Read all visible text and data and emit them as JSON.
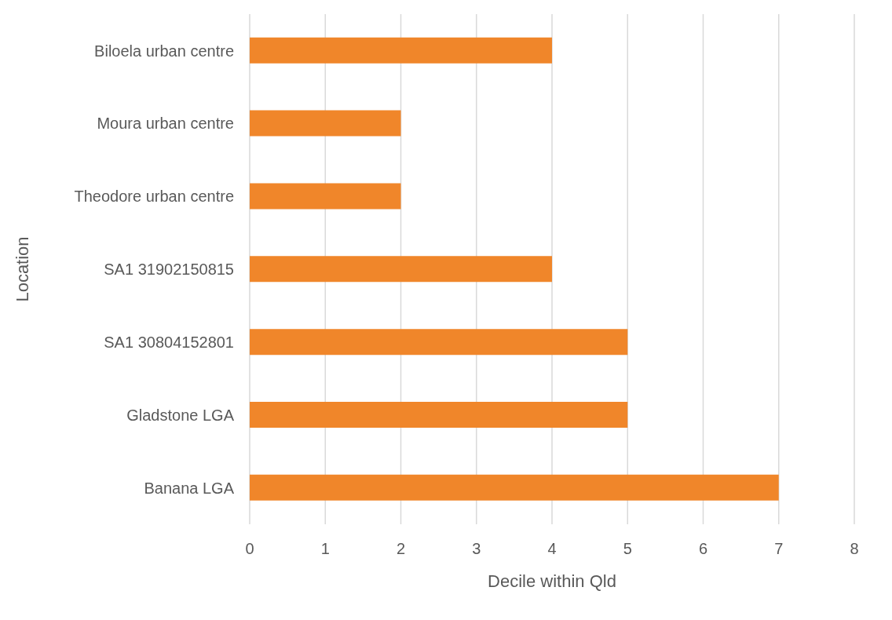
{
  "chart_data": {
    "type": "bar",
    "orientation": "horizontal",
    "xlabel": "Decile within Qld",
    "ylabel": "Location",
    "categories": [
      "Biloela urban centre",
      "Moura urban centre",
      "Theodore urban centre",
      "SA1 31902150815",
      "SA1 30804152801",
      "Gladstone LGA",
      "Banana LGA"
    ],
    "values": [
      4,
      2,
      2,
      4,
      5,
      5,
      7
    ],
    "color": "#f0862a",
    "xlim": [
      0,
      8
    ],
    "xticks": [
      0,
      1,
      2,
      3,
      4,
      5,
      6,
      7,
      8
    ],
    "grid": "x"
  }
}
